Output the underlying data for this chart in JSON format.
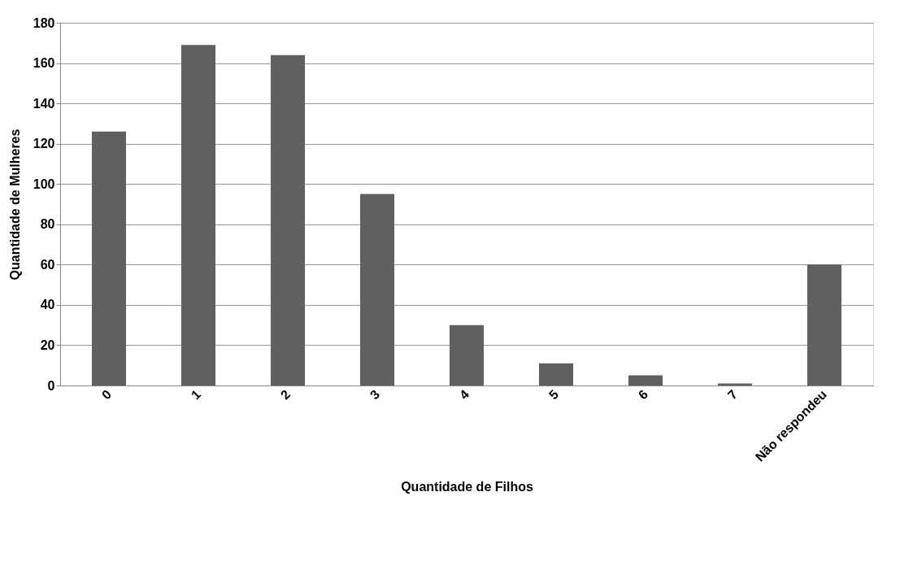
{
  "chart_data": {
    "type": "bar",
    "xlabel": "Quantidade de Filhos",
    "ylabel": "Quantidade de Mulheres",
    "categories": [
      "0",
      "1",
      "2",
      "3",
      "4",
      "5",
      "6",
      "7",
      "Não respondeu"
    ],
    "series": [
      {
        "color": "#606060",
        "values": [
          126,
          169,
          164,
          95,
          30,
          11,
          5,
          1,
          60
        ]
      }
    ],
    "ylim": [
      0,
      180
    ],
    "yticks": [
      0,
      20,
      40,
      60,
      80,
      100,
      120,
      140,
      160,
      180
    ],
    "grid": "y"
  }
}
